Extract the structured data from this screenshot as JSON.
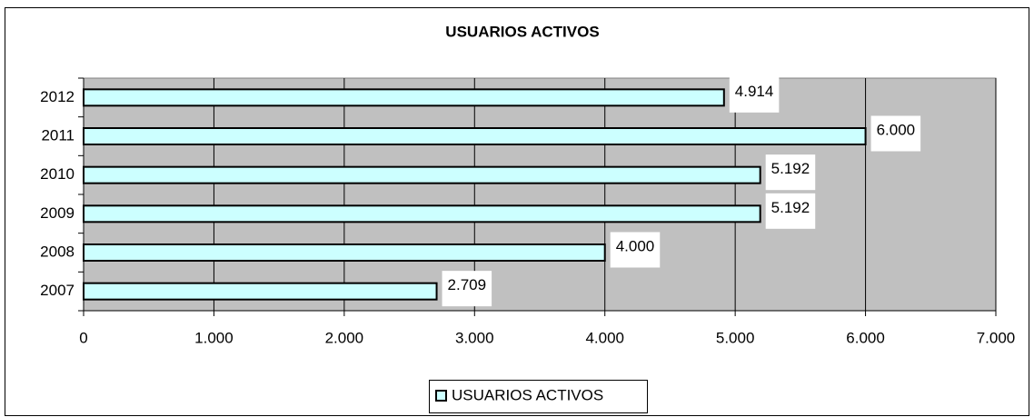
{
  "chart_data": {
    "type": "bar",
    "orientation": "horizontal",
    "title": "USUARIOS ACTIVOS",
    "categories": [
      "2007",
      "2008",
      "2009",
      "2010",
      "2011",
      "2012"
    ],
    "series": [
      {
        "name": "USUARIOS ACTIVOS",
        "color": "#ccffff",
        "values": [
          2709,
          4000,
          5192,
          5192,
          6000,
          4914
        ],
        "value_labels": [
          "2.709",
          "4.000",
          "5.192",
          "5.192",
          "6.000",
          "4.914"
        ]
      }
    ],
    "xlim": [
      0,
      7000
    ],
    "xticks": [
      0,
      {
        "value": 1000,
        "label": "1.000"
      },
      {
        "value": 2000,
        "label": "2.000"
      },
      {
        "value": 3000,
        "label": "3.000"
      },
      {
        "value": 4000,
        "label": "4.000"
      },
      {
        "value": 5000,
        "label": "5.000"
      },
      {
        "value": 6000,
        "label": "6.000"
      },
      {
        "value": 7000,
        "label": "7.000"
      }
    ],
    "grid": true,
    "legend": "bottom",
    "plot_background": "#c0c0c0"
  }
}
